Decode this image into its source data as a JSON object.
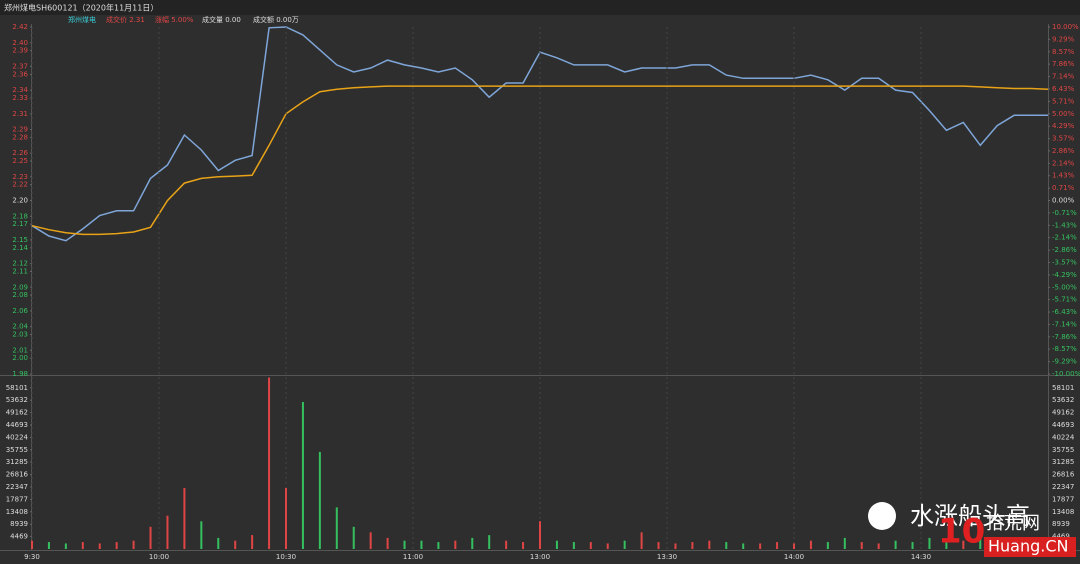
{
  "header": {
    "title": "郑州煤电SH600121（2020年11月11日）",
    "name": "郑州煤电",
    "price": "成交价 2.31",
    "change": "涨幅 5.00%",
    "volume": "成交量 0.00",
    "amount": "成交额 0.00万"
  },
  "watermark": {
    "slogan": "水涨船头高",
    "logo_number": "10",
    "site": "拾荒网",
    "domain": "Huang.CN"
  },
  "chart_data": [
    {
      "type": "line",
      "x": [
        0,
        4,
        8,
        12,
        16,
        20,
        24,
        28,
        32,
        36,
        40,
        44,
        48,
        52,
        56,
        60,
        64,
        68,
        72,
        76,
        80,
        84,
        88,
        92,
        96,
        100,
        104,
        108,
        112,
        116,
        120,
        124,
        128,
        132,
        136,
        140,
        144,
        148,
        152,
        156,
        160,
        164,
        168,
        172,
        176,
        180,
        184,
        188,
        192,
        196,
        200,
        204,
        208,
        212,
        216,
        220,
        224,
        228,
        232,
        236,
        240
      ],
      "series": [
        {
          "name": "price",
          "color": "#7ea6d8",
          "values": [
            2.168,
            2.155,
            2.149,
            2.164,
            2.181,
            2.187,
            2.187,
            2.228,
            2.245,
            2.283,
            2.264,
            2.238,
            2.251,
            2.257,
            2.419,
            2.42,
            2.41,
            2.391,
            2.372,
            2.363,
            2.368,
            2.378,
            2.372,
            2.368,
            2.363,
            2.368,
            2.353,
            2.331,
            2.349,
            2.349,
            2.388,
            2.381,
            2.372,
            2.372,
            2.372,
            2.363,
            2.368,
            2.368,
            2.368,
            2.372,
            2.372,
            2.359,
            2.355,
            2.355,
            2.355,
            2.355,
            2.359,
            2.353,
            2.34,
            2.355,
            2.355,
            2.34,
            2.337,
            2.314,
            2.289,
            2.299,
            2.27,
            2.295,
            2.308,
            2.308,
            2.308
          ]
        },
        {
          "name": "average",
          "color": "#e8a317",
          "values": [
            2.168,
            2.163,
            2.159,
            2.157,
            2.157,
            2.158,
            2.16,
            2.166,
            2.2,
            2.222,
            2.228,
            2.23,
            2.231,
            2.232,
            2.27,
            2.31,
            2.325,
            2.338,
            2.341,
            2.343,
            2.344,
            2.345,
            2.345,
            2.345,
            2.345,
            2.345,
            2.345,
            2.345,
            2.345,
            2.345,
            2.345,
            2.345,
            2.345,
            2.345,
            2.345,
            2.345,
            2.345,
            2.345,
            2.345,
            2.345,
            2.345,
            2.345,
            2.345,
            2.345,
            2.345,
            2.345,
            2.345,
            2.345,
            2.345,
            2.345,
            2.345,
            2.345,
            2.345,
            2.345,
            2.345,
            2.345,
            2.344,
            2.343,
            2.342,
            2.342,
            2.341
          ]
        }
      ],
      "xlim": [
        0,
        240
      ],
      "ylim": [
        1.98,
        2.42
      ],
      "yticks": [
        2.42,
        {
          "value": 2.4,
          "label": "2.40"
        },
        2.39,
        2.37,
        2.36,
        2.34,
        2.33,
        2.31,
        2.29,
        2.28,
        2.26,
        2.25,
        2.23,
        2.22,
        {
          "value": 2.2,
          "label": "2.20"
        },
        2.18,
        2.17,
        2.15,
        2.14,
        2.12,
        2.11,
        2.09,
        2.08,
        2.06,
        2.04,
        2.03,
        2.01,
        {
          "value": 2,
          "label": "2.00"
        },
        1.98
      ],
      "y2lim": [
        -10,
        10
      ],
      "y2ticks": [
        {
          "value": 10,
          "label": "10.00%"
        },
        {
          "value": 9.29,
          "label": "9.29%"
        },
        {
          "value": 8.57,
          "label": "8.57%"
        },
        {
          "value": 7.86,
          "label": "7.86%"
        },
        {
          "value": 7.14,
          "label": "7.14%"
        },
        {
          "value": 6.43,
          "label": "6.43%"
        },
        {
          "value": 5.71,
          "label": "5.71%"
        },
        {
          "value": 5,
          "label": "5.00%"
        },
        {
          "value": 4.29,
          "label": "4.29%"
        },
        {
          "value": 3.57,
          "label": "3.57%"
        },
        {
          "value": 2.86,
          "label": "2.86%"
        },
        {
          "value": 2.14,
          "label": "2.14%"
        },
        {
          "value": 1.43,
          "label": "1.43%"
        },
        {
          "value": 0.71,
          "label": "0.71%"
        },
        {
          "value": 0,
          "label": "0.00%"
        },
        {
          "value": -0.71,
          "label": "-0.71%"
        },
        {
          "value": -1.43,
          "label": "-1.43%"
        },
        {
          "value": -2.14,
          "label": "-2.14%"
        },
        {
          "value": -2.86,
          "label": "-2.86%"
        },
        {
          "value": -3.57,
          "label": "-3.57%"
        },
        {
          "value": -4.29,
          "label": "-4.29%"
        },
        {
          "value": -5,
          "label": "-5.00%"
        },
        {
          "value": -5.71,
          "label": "-5.71%"
        },
        {
          "value": -6.43,
          "label": "-6.43%"
        },
        {
          "value": -7.14,
          "label": "-7.14%"
        },
        {
          "value": -7.86,
          "label": "-7.86%"
        },
        {
          "value": -8.57,
          "label": "-8.57%"
        },
        {
          "value": -9.29,
          "label": "-9.29%"
        },
        {
          "value": -10,
          "label": "-10.00%"
        }
      ],
      "up_color": "#e04545",
      "down_color": "#35c060",
      "flat_color": "#dddddd"
    },
    {
      "type": "bar",
      "x": [
        0,
        4,
        8,
        12,
        16,
        20,
        24,
        28,
        32,
        36,
        40,
        44,
        48,
        52,
        56,
        60,
        64,
        68,
        72,
        76,
        80,
        84,
        88,
        92,
        96,
        100,
        104,
        108,
        112,
        116,
        120,
        124,
        128,
        132,
        136,
        140,
        144,
        148,
        152,
        156,
        160,
        164,
        168,
        172,
        176,
        180,
        184,
        188,
        192,
        196,
        200,
        204,
        208,
        212,
        216,
        220,
        224,
        228,
        232,
        236,
        240
      ],
      "values": [
        3000,
        2500,
        2000,
        2500,
        2000,
        2500,
        3000,
        8000,
        12000,
        22000,
        10000,
        4000,
        3000,
        5000,
        61800,
        22000,
        53000,
        35000,
        15000,
        8000,
        6000,
        4000,
        3000,
        3000,
        2500,
        3000,
        4000,
        5000,
        3000,
        2500,
        10000,
        3000,
        2500,
        2500,
        2000,
        3000,
        6000,
        2500,
        2000,
        2500,
        3000,
        2500,
        2000,
        2000,
        2500,
        2000,
        3000,
        2500,
        4000,
        2500,
        2000,
        3000,
        2500,
        4000,
        3500,
        3000,
        4000,
        3000,
        2500,
        3000,
        3500
      ],
      "xlim": [
        0,
        240
      ],
      "xticks": [
        {
          "value": 0,
          "label": "9:30"
        },
        {
          "value": 30,
          "label": "10:00"
        },
        {
          "value": 60,
          "label": "10:30"
        },
        {
          "value": 90,
          "label": "11:00"
        },
        {
          "value": 120,
          "label": "13:00"
        },
        {
          "value": 150,
          "label": "13:30"
        },
        {
          "value": 180,
          "label": "14:00"
        },
        {
          "value": 210,
          "label": "14:30"
        }
      ],
      "ylim": [
        0,
        62000
      ],
      "yticks": [
        4469,
        8939,
        13408,
        17877,
        22347,
        26816,
        31285,
        35755,
        40224,
        44693,
        49162,
        53632,
        58101
      ],
      "up_color": "#e04545",
      "down_color": "#35c060"
    }
  ]
}
